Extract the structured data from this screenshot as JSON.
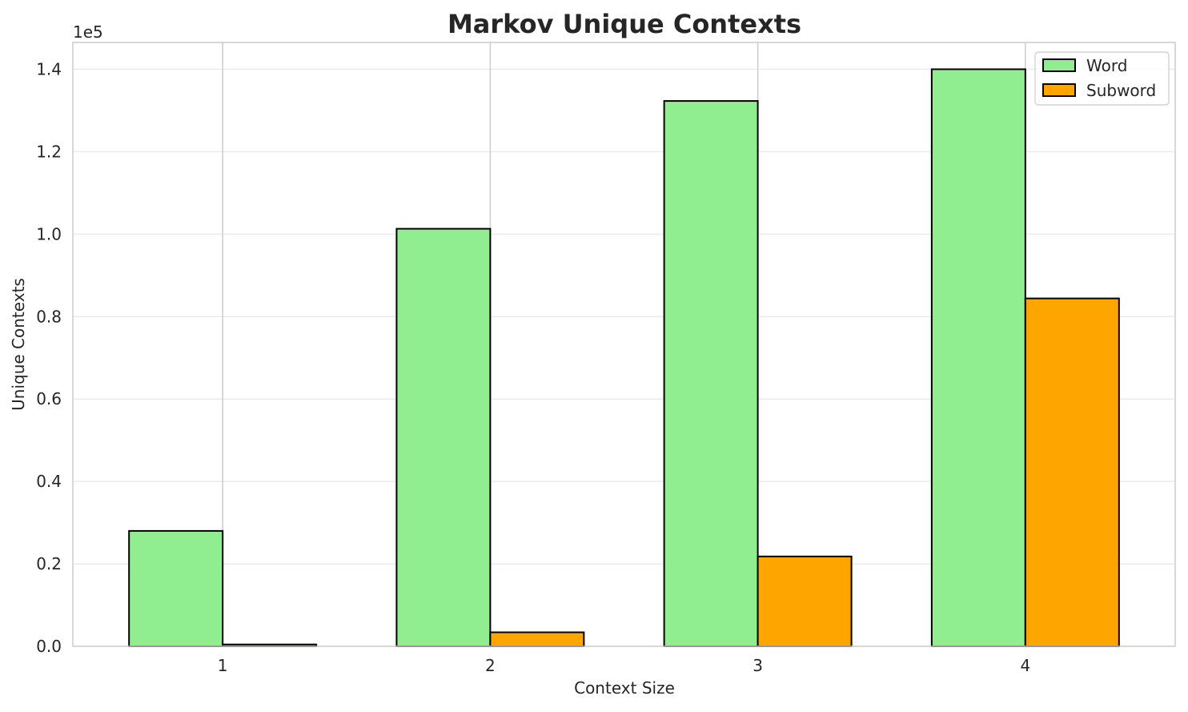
{
  "chart_data": {
    "type": "bar",
    "title": "Markov Unique Contexts",
    "xlabel": "Context Size",
    "ylabel": "Unique Contexts",
    "y_offset_label": "1e5",
    "y_scale_divisor": 100000,
    "categories": [
      "1",
      "2",
      "3",
      "4"
    ],
    "series": [
      {
        "name": "Word",
        "color": "#90ee90",
        "values": [
          28000,
          101300,
          132300,
          140000
        ]
      },
      {
        "name": "Subword",
        "color": "#ffa500",
        "values": [
          450,
          3400,
          21800,
          84400
        ]
      }
    ],
    "ylim": [
      0,
      146500
    ],
    "yticks": [
      0,
      20000,
      40000,
      60000,
      80000,
      100000,
      120000,
      140000
    ],
    "ytick_labels": [
      "0.0",
      "0.2",
      "0.4",
      "0.6",
      "0.8",
      "1.0",
      "1.2",
      "1.4"
    ],
    "grid": true,
    "legend_position": "top-right",
    "colors": {
      "edge": "#000000",
      "grid": "#ebebeb",
      "axes_edge": "#cccccc",
      "text": "#262626"
    }
  }
}
